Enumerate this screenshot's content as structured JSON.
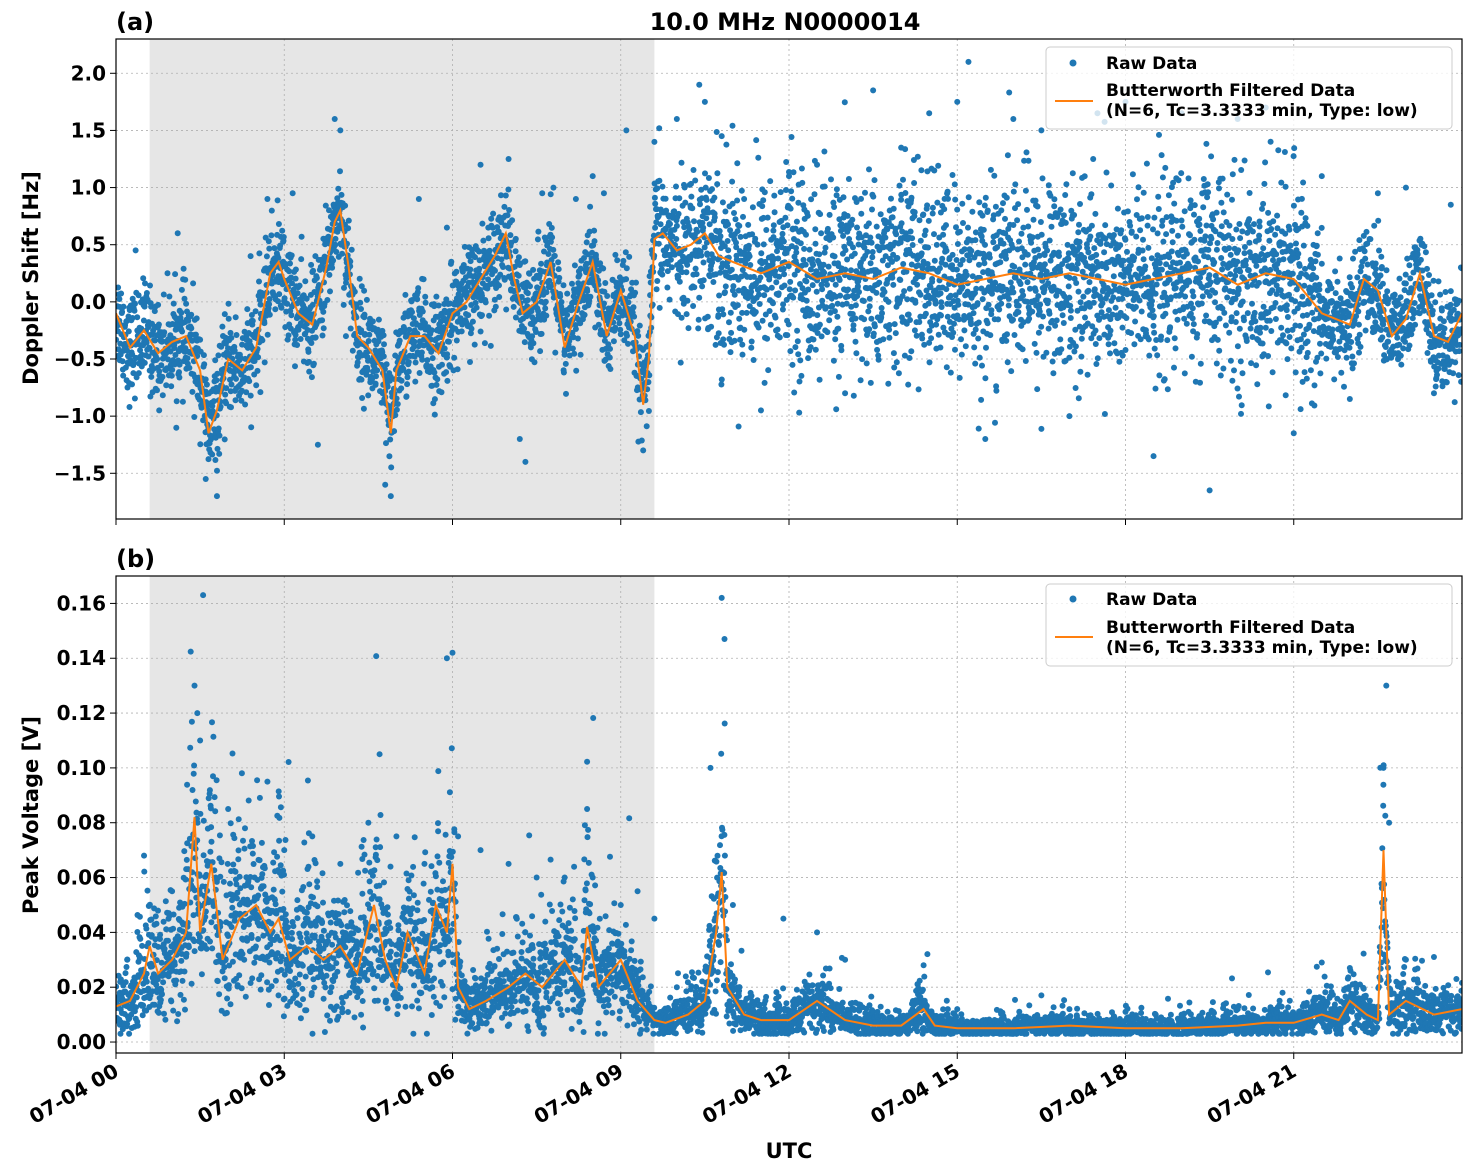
{
  "figure": {
    "title": "10.0 MHz N0000014",
    "xlabel": "UTC"
  },
  "colors": {
    "raw": "#1f77b4",
    "filtered": "#ff7f0e",
    "night_shade": "#e6e6e6",
    "grid": "#b0b0b0"
  },
  "chart_data": [
    {
      "type": "scatter",
      "panel_label": "(a)",
      "ylabel": "Doppler Shift [Hz]",
      "xlim_hours": [
        0,
        24
      ],
      "ylim": [
        -1.9,
        2.3
      ],
      "yticks": [
        -1.5,
        -1.0,
        -0.5,
        0.0,
        0.5,
        1.0,
        1.5,
        2.0
      ],
      "ytick_labels": [
        "−1.5",
        "−1.0",
        "−0.5",
        "0.0",
        "0.5",
        "1.0",
        "1.5",
        "2.0"
      ],
      "xticks_hours": [
        0,
        3,
        6,
        9,
        12,
        15,
        18,
        21
      ],
      "shaded_region_hours": [
        0.6,
        9.6
      ],
      "grid": true,
      "legend": {
        "position": "top-right",
        "raw": "Raw Data",
        "filtered_line1": "Butterworth Filtered Data",
        "filtered_line2": "(N=6, Tc=3.3333 min, Type: low)"
      },
      "series": [
        {
          "name": "Butterworth Filtered Data",
          "kind": "line",
          "x": [
            0,
            0.25,
            0.5,
            0.75,
            1,
            1.25,
            1.5,
            1.65,
            1.8,
            2,
            2.25,
            2.5,
            2.75,
            2.9,
            3,
            3.25,
            3.5,
            3.75,
            3.9,
            4,
            4.15,
            4.3,
            4.5,
            4.75,
            4.9,
            5,
            5.25,
            5.5,
            5.75,
            6,
            6.25,
            6.5,
            6.75,
            6.95,
            7.1,
            7.25,
            7.5,
            7.75,
            8,
            8.25,
            8.5,
            8.75,
            9,
            9.25,
            9.4,
            9.5,
            9.6,
            9.75,
            10,
            10.25,
            10.5,
            10.75,
            11,
            11.5,
            12,
            12.5,
            13,
            13.5,
            14,
            14.5,
            15,
            15.5,
            16,
            16.5,
            17,
            17.5,
            18,
            18.5,
            19,
            19.5,
            20,
            20.5,
            21,
            21.5,
            22,
            22.25,
            22.5,
            22.75,
            23,
            23.25,
            23.5,
            23.75,
            24
          ],
          "y": [
            -0.1,
            -0.4,
            -0.25,
            -0.45,
            -0.35,
            -0.3,
            -0.6,
            -1.15,
            -0.95,
            -0.5,
            -0.6,
            -0.4,
            0.25,
            0.35,
            0.2,
            -0.1,
            -0.2,
            0.3,
            0.7,
            0.8,
            0.3,
            -0.3,
            -0.4,
            -0.6,
            -1.15,
            -0.6,
            -0.3,
            -0.3,
            -0.45,
            -0.1,
            0.0,
            0.2,
            0.4,
            0.6,
            0.2,
            -0.1,
            0.0,
            0.35,
            -0.4,
            0.0,
            0.35,
            -0.3,
            0.1,
            -0.3,
            -0.9,
            -0.5,
            0.55,
            0.6,
            0.45,
            0.5,
            0.6,
            0.4,
            0.35,
            0.25,
            0.35,
            0.2,
            0.25,
            0.2,
            0.3,
            0.25,
            0.15,
            0.2,
            0.25,
            0.2,
            0.25,
            0.2,
            0.15,
            0.2,
            0.25,
            0.3,
            0.15,
            0.25,
            0.2,
            -0.1,
            -0.2,
            0.2,
            0.1,
            -0.3,
            -0.15,
            0.25,
            -0.3,
            -0.35,
            -0.1
          ]
        },
        {
          "name": "Raw Data",
          "kind": "scatter",
          "x": [
            0.35,
            1.1,
            1.6,
            1.8,
            2.4,
            2.7,
            3.15,
            3.6,
            3.9,
            4.0,
            4.1,
            4.8,
            4.9,
            5.4,
            5.9,
            6.5,
            7.0,
            7.2,
            7.3,
            7.6,
            7.8,
            8.2,
            8.5,
            8.7,
            9.1,
            9.4,
            9.6,
            10.0,
            10.4,
            10.5,
            10.8,
            11.2,
            11.5,
            12.0,
            12.5,
            13.0,
            13.5,
            14.0,
            14.5,
            15.0,
            15.2,
            15.5,
            16.0,
            16.5,
            17.0,
            17.5,
            18.0,
            18.5,
            19.0,
            19.5,
            20.0,
            20.5,
            21.0,
            21.5,
            22.0,
            22.5,
            23.0,
            23.5,
            23.8
          ],
          "y": [
            0.45,
            0.6,
            -1.55,
            -1.7,
            0.4,
            0.9,
            0.95,
            -1.25,
            1.6,
            1.5,
            -0.3,
            -1.6,
            -1.7,
            0.9,
            0.65,
            1.2,
            1.25,
            -1.2,
            -1.4,
            0.95,
            1.0,
            0.9,
            1.1,
            0.95,
            1.5,
            -1.3,
            1.4,
            1.6,
            1.9,
            1.75,
            1.45,
            0.9,
            -0.95,
            1.1,
            1.2,
            -0.8,
            1.85,
            1.35,
            1.65,
            1.75,
            2.1,
            -1.2,
            1.6,
            1.5,
            -1.0,
            1.65,
            1.75,
            -1.35,
            1.65,
            -1.65,
            1.6,
            1.7,
            -1.15,
            1.1,
            -0.85,
            0.95,
            1.0,
            -0.8,
            0.85
          ]
        }
      ]
    },
    {
      "type": "scatter",
      "panel_label": "(b)",
      "ylabel": "Peak Voltage [V]",
      "xlim_hours": [
        0,
        24
      ],
      "ylim": [
        -0.004,
        0.17
      ],
      "yticks": [
        0.0,
        0.02,
        0.04,
        0.06,
        0.08,
        0.1,
        0.12,
        0.14,
        0.16
      ],
      "ytick_labels": [
        "0.00",
        "0.02",
        "0.04",
        "0.06",
        "0.08",
        "0.10",
        "0.12",
        "0.14",
        "0.16"
      ],
      "xticks_hours": [
        0,
        3,
        6,
        9,
        12,
        15,
        18,
        21
      ],
      "xtick_labels": [
        "07-04 00",
        "07-04 03",
        "07-04 06",
        "07-04 09",
        "07-04 12",
        "07-04 15",
        "07-04 18",
        "07-04 21"
      ],
      "shaded_region_hours": [
        0.6,
        9.6
      ],
      "grid": true,
      "legend": {
        "position": "top-right",
        "raw": "Raw Data",
        "filtered_line1": "Butterworth Filtered Data",
        "filtered_line2": "(N=6, Tc=3.3333 min, Type: low)"
      },
      "series": [
        {
          "name": "Butterworth Filtered Data",
          "kind": "line",
          "x": [
            0,
            0.25,
            0.5,
            0.6,
            0.75,
            1,
            1.25,
            1.4,
            1.5,
            1.7,
            1.9,
            2.2,
            2.5,
            2.75,
            2.9,
            3.1,
            3.4,
            3.7,
            4.0,
            4.3,
            4.6,
            4.8,
            5.0,
            5.2,
            5.5,
            5.7,
            5.9,
            6.0,
            6.1,
            6.3,
            6.6,
            7.0,
            7.3,
            7.6,
            8.0,
            8.3,
            8.4,
            8.6,
            9.0,
            9.3,
            9.6,
            9.8,
            10.2,
            10.5,
            10.7,
            10.8,
            10.9,
            11.2,
            11.5,
            12.0,
            12.5,
            13.0,
            13.5,
            14.0,
            14.4,
            14.6,
            15.0,
            16.0,
            17.0,
            18.0,
            19.0,
            20.0,
            20.5,
            21.0,
            21.5,
            21.8,
            22.0,
            22.3,
            22.5,
            22.6,
            22.7,
            23.0,
            23.5,
            24.0
          ],
          "y": [
            0.013,
            0.015,
            0.025,
            0.035,
            0.025,
            0.03,
            0.04,
            0.082,
            0.04,
            0.065,
            0.03,
            0.045,
            0.05,
            0.04,
            0.045,
            0.03,
            0.035,
            0.03,
            0.035,
            0.025,
            0.05,
            0.03,
            0.02,
            0.04,
            0.025,
            0.05,
            0.04,
            0.065,
            0.02,
            0.012,
            0.015,
            0.02,
            0.025,
            0.02,
            0.03,
            0.02,
            0.042,
            0.02,
            0.03,
            0.015,
            0.008,
            0.007,
            0.01,
            0.015,
            0.04,
            0.062,
            0.02,
            0.01,
            0.008,
            0.008,
            0.015,
            0.008,
            0.006,
            0.006,
            0.012,
            0.006,
            0.005,
            0.005,
            0.006,
            0.005,
            0.005,
            0.006,
            0.007,
            0.007,
            0.01,
            0.008,
            0.015,
            0.01,
            0.008,
            0.07,
            0.01,
            0.015,
            0.01,
            0.012
          ]
        },
        {
          "name": "Raw Data",
          "kind": "scatter",
          "x": [
            0.2,
            0.5,
            1.0,
            1.4,
            1.45,
            1.5,
            2.0,
            2.3,
            2.7,
            3.0,
            3.5,
            4.0,
            4.5,
            4.7,
            5.0,
            5.5,
            5.9,
            6.0,
            6.1,
            6.5,
            7.0,
            7.5,
            8.0,
            8.4,
            8.5,
            9.0,
            9.3,
            9.6,
            10.0,
            10.6,
            10.8,
            10.85,
            11.0,
            11.9,
            12.5,
            13.0,
            14.4,
            15.0,
            16.5,
            17.0,
            18.0,
            19.0,
            20.0,
            20.8,
            21.5,
            22.0,
            22.6,
            22.65,
            22.7,
            23.0,
            23.5,
            23.9
          ],
          "y": [
            0.03,
            0.068,
            0.055,
            0.13,
            0.12,
            0.11,
            0.085,
            0.078,
            0.095,
            0.07,
            0.075,
            0.065,
            0.08,
            0.105,
            0.075,
            0.065,
            0.14,
            0.142,
            0.075,
            0.07,
            0.065,
            0.06,
            0.06,
            0.085,
            0.06,
            0.05,
            0.055,
            0.045,
            0.02,
            0.1,
            0.162,
            0.147,
            0.05,
            0.045,
            0.04,
            0.03,
            0.028,
            0.012,
            0.017,
            0.012,
            0.011,
            0.01,
            0.012,
            0.018,
            0.029,
            0.027,
            0.1,
            0.13,
            0.08,
            0.03,
            0.031,
            0.023
          ]
        }
      ]
    }
  ]
}
